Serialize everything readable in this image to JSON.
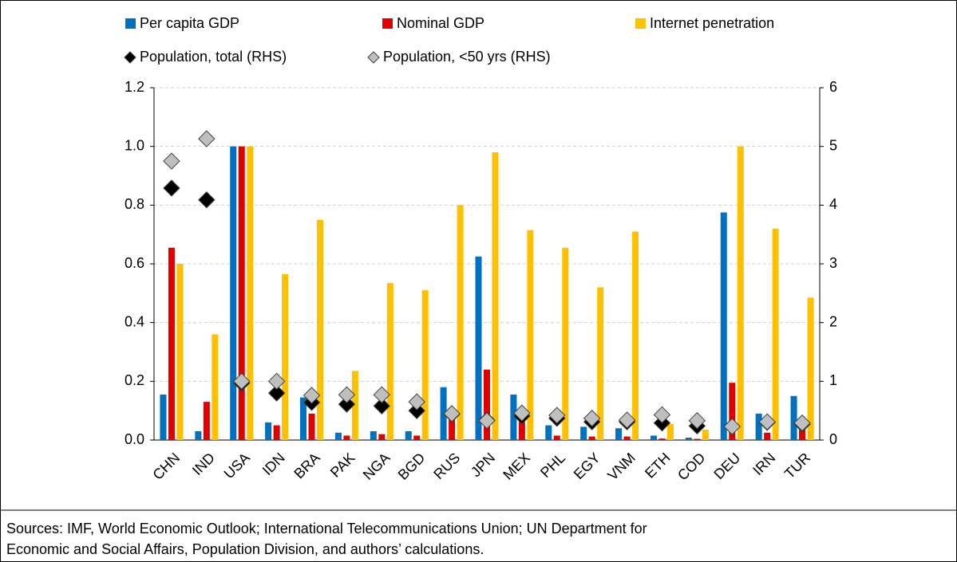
{
  "chart_data": {
    "type": "bar",
    "categories": [
      "CHN",
      "IND",
      "USA",
      "IDN",
      "BRA",
      "PAK",
      "NGA",
      "BGD",
      "RUS",
      "JPN",
      "MEX",
      "PHL",
      "EGY",
      "VNM",
      "ETH",
      "COD",
      "DEU",
      "IRN",
      "TUR"
    ],
    "series": [
      {
        "name": "Per capita GDP",
        "type": "bar",
        "color": "#0070c0",
        "values": [
          0.155,
          0.03,
          1.0,
          0.06,
          0.145,
          0.025,
          0.03,
          0.03,
          0.18,
          0.625,
          0.155,
          0.05,
          0.045,
          0.04,
          0.015,
          0.008,
          0.775,
          0.09,
          0.15
        ]
      },
      {
        "name": "Nominal GDP",
        "type": "bar",
        "color": "#e00000",
        "values": [
          0.655,
          0.13,
          1.0,
          0.05,
          0.09,
          0.015,
          0.02,
          0.015,
          0.1,
          0.24,
          0.09,
          0.015,
          0.012,
          0.012,
          0.005,
          0.004,
          0.195,
          0.025,
          0.05
        ]
      },
      {
        "name": "Internet penetration",
        "type": "bar",
        "color": "#ffc000",
        "values": [
          0.6,
          0.36,
          1.0,
          0.565,
          0.75,
          0.235,
          0.535,
          0.51,
          0.8,
          0.98,
          0.715,
          0.655,
          0.52,
          0.71,
          0.055,
          0.035,
          1.0,
          0.72,
          0.485
        ]
      },
      {
        "name": "Population, total (RHS)",
        "type": "scatter",
        "axis": "y2",
        "color": "#000000",
        "values": [
          4.29,
          4.09,
          0.97,
          0.8,
          0.64,
          0.61,
          0.58,
          0.5,
          0.44,
          0.34,
          0.41,
          0.37,
          0.31,
          0.31,
          0.29,
          0.24,
          0.23,
          0.3,
          0.27
        ]
      },
      {
        "name": "Population, <50 yrs (RHS)",
        "type": "scatter",
        "axis": "y2",
        "color": "#bfbfbf",
        "values": [
          4.75,
          5.13,
          1.0,
          1.0,
          0.76,
          0.77,
          0.77,
          0.65,
          0.45,
          0.33,
          0.46,
          0.42,
          0.37,
          0.34,
          0.43,
          0.33,
          0.23,
          0.31,
          0.29
        ]
      }
    ],
    "ylim": [
      0,
      1.2
    ],
    "yticks": [
      {
        "value": 0,
        "label": "0.0"
      },
      {
        "value": 0.2,
        "label": "0.2"
      },
      {
        "value": 0.4,
        "label": "0.4"
      },
      {
        "value": 0.6,
        "label": "0.6"
      },
      {
        "value": 0.8,
        "label": "0.8"
      },
      {
        "value": 1.0,
        "label": "1.0"
      },
      {
        "value": 1.2,
        "label": "1.2"
      }
    ],
    "y2lim": [
      0,
      6
    ],
    "y2ticks": [
      0,
      1,
      2,
      3,
      4,
      5,
      6
    ],
    "grid": true,
    "legend": "top",
    "footnote": [
      "Sources: IMF, World Economic Outlook; International Telecommunications Union; UN Department for",
      "Economic and Social Affairs, Population Division, and authors’ calculations."
    ]
  }
}
